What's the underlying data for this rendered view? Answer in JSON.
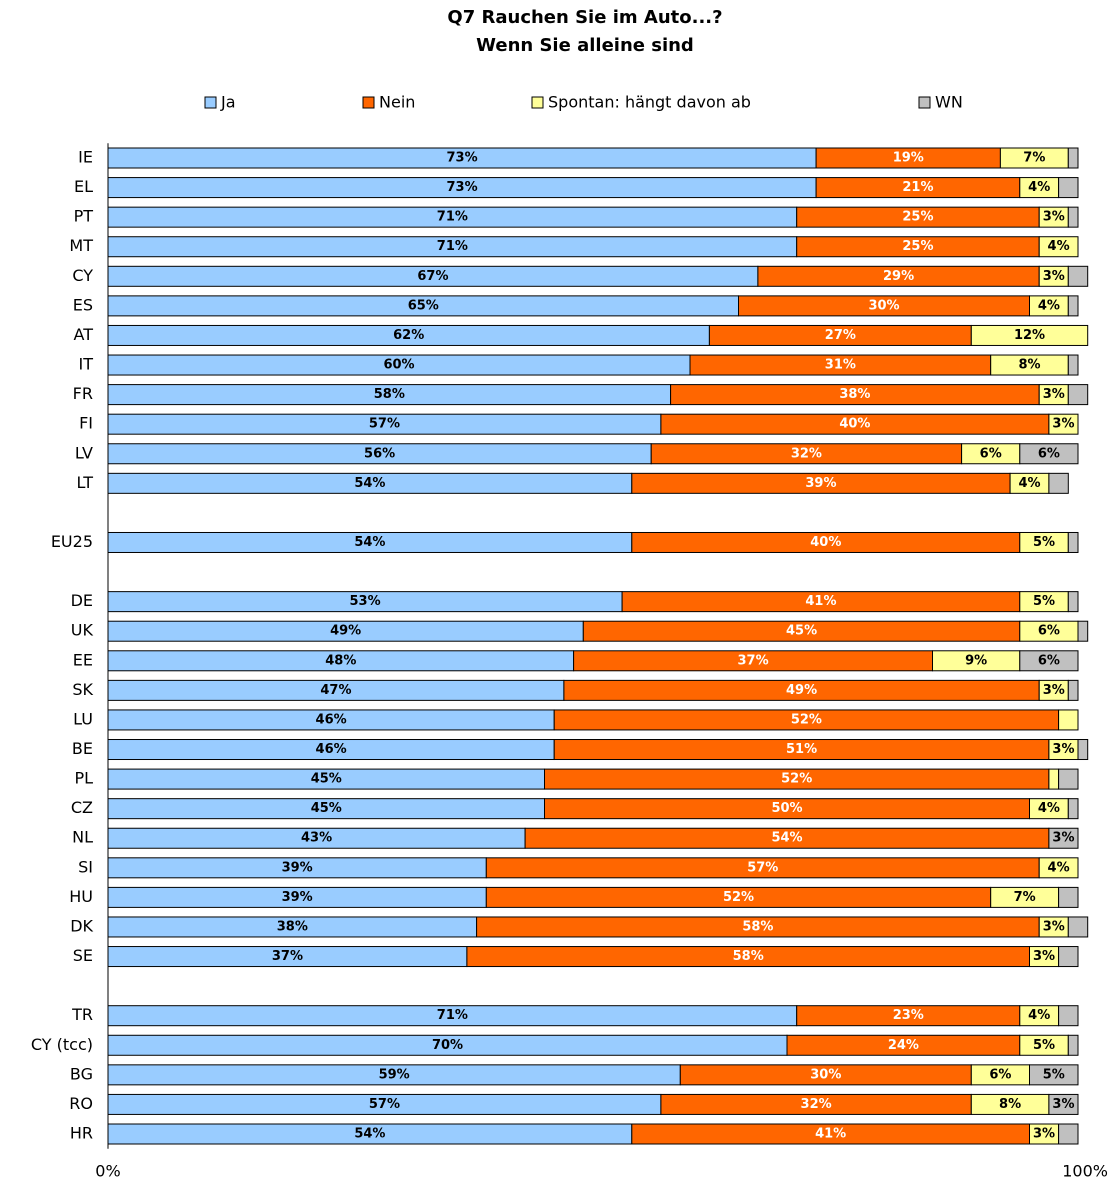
{
  "chart_data": {
    "type": "stacked_barh",
    "title": [
      "Q7 Rauchen Sie im Auto...?",
      "Wenn Sie alleine sind"
    ],
    "categories": [
      "IE",
      "EL",
      "PT",
      "MT",
      "CY",
      "ES",
      "AT",
      "IT",
      "FR",
      "FI",
      "LV",
      "LT",
      null,
      "EU25",
      null,
      "DE",
      "UK",
      "EE",
      "SK",
      "LU",
      "BE",
      "PL",
      "CZ",
      "NL",
      "SI",
      "HU",
      "DK",
      "SE",
      null,
      "TR",
      "CY (tcc)",
      "BG",
      "RO",
      "HR"
    ],
    "series": [
      {
        "name": "Ja",
        "color": "#99ccff",
        "label_color": "#000000",
        "values": [
          73,
          73,
          71,
          71,
          67,
          65,
          62,
          60,
          58,
          57,
          56,
          54,
          null,
          54,
          null,
          53,
          49,
          48,
          47,
          46,
          46,
          45,
          45,
          43,
          39,
          39,
          38,
          37,
          null,
          71,
          70,
          59,
          57,
          54
        ],
        "value_labels": [
          "73%",
          "73%",
          "71%",
          "71%",
          "67%",
          "65%",
          "62%",
          "60%",
          "58%",
          "57%",
          "56%",
          "54%",
          null,
          "54%",
          null,
          "53%",
          "49%",
          "48%",
          "47%",
          "46%",
          "46%",
          "45%",
          "45%",
          "43%",
          "39%",
          "39%",
          "38%",
          "37%",
          null,
          "71%",
          "70%",
          "59%",
          "57%",
          "54%"
        ]
      },
      {
        "name": "Nein",
        "color": "#ff6600",
        "label_color": "#ffffff",
        "values": [
          19,
          21,
          25,
          25,
          29,
          30,
          27,
          31,
          38,
          40,
          32,
          39,
          null,
          40,
          null,
          41,
          45,
          37,
          49,
          52,
          51,
          52,
          50,
          54,
          57,
          52,
          58,
          58,
          null,
          23,
          24,
          30,
          32,
          41
        ],
        "value_labels": [
          "19%",
          "21%",
          "25%",
          "25%",
          "29%",
          "30%",
          "27%",
          "31%",
          "38%",
          "40%",
          "32%",
          "39%",
          null,
          "40%",
          null,
          "41%",
          "45%",
          "37%",
          "49%",
          "52%",
          "51%",
          "52%",
          "50%",
          "54%",
          "57%",
          "52%",
          "58%",
          "58%",
          null,
          "23%",
          "24%",
          "30%",
          "32%",
          "41%"
        ]
      },
      {
        "name": "Spontan: hängt davon ab",
        "color": "#ffff99",
        "label_color": "#000000",
        "values": [
          7,
          4,
          3,
          4,
          3,
          4,
          12,
          8,
          3,
          3,
          6,
          4,
          null,
          5,
          null,
          5,
          6,
          9,
          3,
          2,
          3,
          1,
          4,
          0,
          4,
          7,
          3,
          3,
          null,
          4,
          5,
          6,
          8,
          3
        ],
        "value_labels": [
          "7%",
          "4%",
          "3%",
          "4%",
          "3%",
          "4%",
          "12%",
          "8%",
          "3%",
          "3%",
          "6%",
          "4%",
          null,
          "5%",
          null,
          "5%",
          "6%",
          "9%",
          "3%",
          null,
          "3%",
          null,
          "4%",
          null,
          "4%",
          "7%",
          "3%",
          "3%",
          null,
          "4%",
          "5%",
          "6%",
          "8%",
          "3%"
        ]
      },
      {
        "name": "WN",
        "color": "#c0c0c0",
        "label_color": "#000000",
        "values": [
          1,
          2,
          1,
          0,
          2,
          1,
          0,
          1,
          2,
          0,
          6,
          2,
          null,
          1,
          null,
          1,
          1,
          6,
          1,
          0,
          1,
          2,
          1,
          3,
          0,
          2,
          2,
          2,
          null,
          2,
          1,
          5,
          3,
          2
        ],
        "value_labels": [
          null,
          null,
          null,
          null,
          null,
          null,
          null,
          null,
          null,
          null,
          "6%",
          null,
          null,
          null,
          null,
          null,
          null,
          "6%",
          null,
          null,
          null,
          null,
          null,
          "3%",
          null,
          null,
          null,
          null,
          null,
          null,
          null,
          "5%",
          "3%",
          null
        ]
      }
    ],
    "xlim": [
      0,
      100
    ],
    "xticks": [
      {
        "value": 0,
        "label": "0%"
      },
      {
        "value": 100,
        "label": "100%"
      }
    ],
    "legend": "top"
  }
}
